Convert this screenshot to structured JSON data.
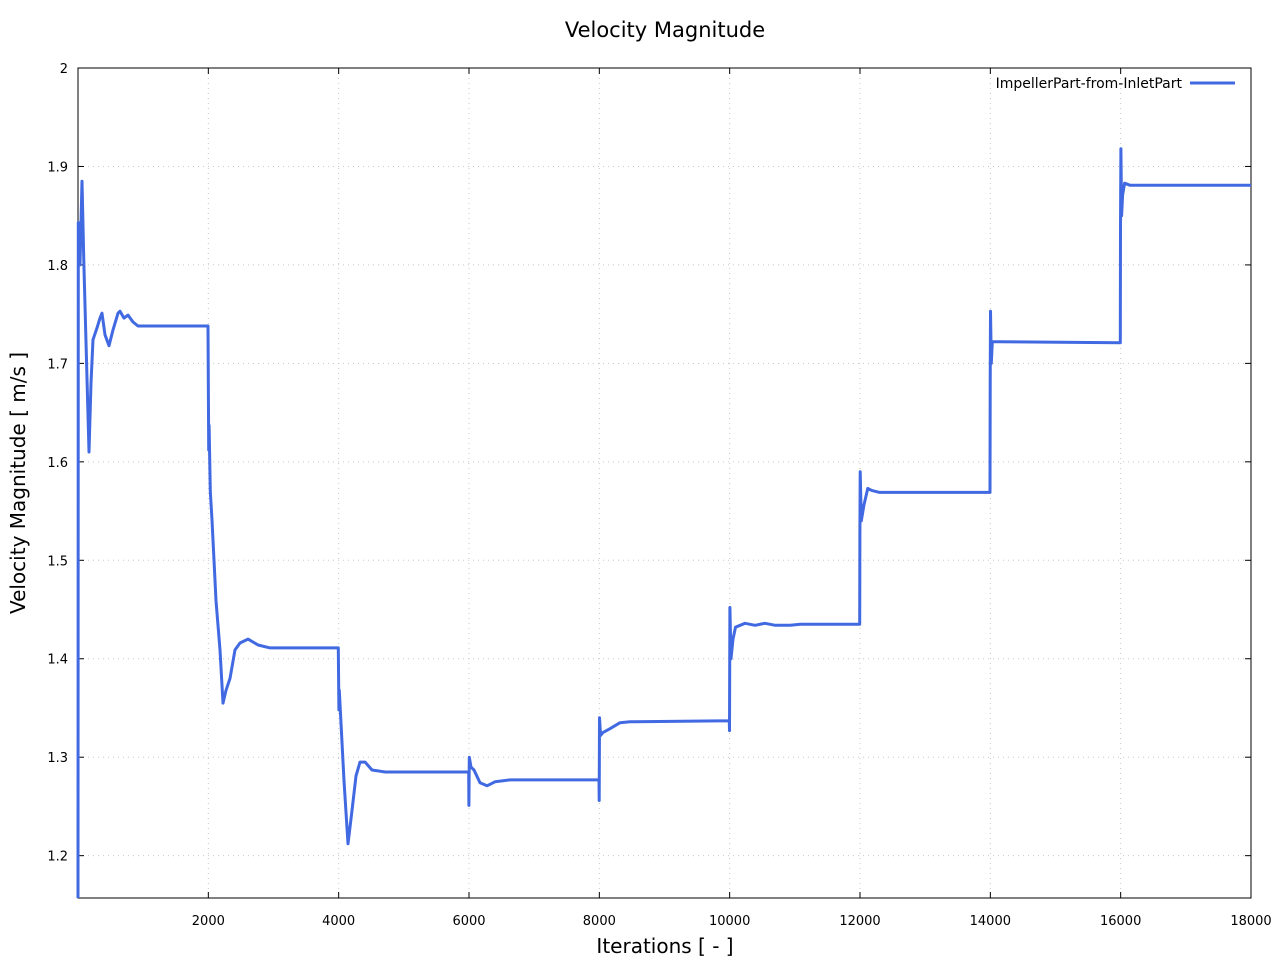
{
  "chart_data": {
    "type": "line",
    "title": "Velocity Magnitude",
    "xlabel": "Iterations [ - ]",
    "ylabel": "Velocity Magnitude [ m/s ]",
    "xlim": [
      0,
      18000
    ],
    "ylim": [
      1.157,
      2.0
    ],
    "grid": true,
    "legend_position": "top-right",
    "color": "#4169e1",
    "x_ticks": [
      "2000",
      "4000",
      "6000",
      "8000",
      "10000",
      "12000",
      "14000",
      "16000",
      "18000"
    ],
    "x_tick_values": [
      2000,
      4000,
      6000,
      8000,
      10000,
      12000,
      14000,
      16000,
      18000
    ],
    "y_ticks": [
      "1.2",
      "1.3",
      "1.4",
      "1.5",
      "1.6",
      "1.7",
      "1.8",
      "1.9",
      "2"
    ],
    "y_tick_values": [
      1.2,
      1.3,
      1.4,
      1.5,
      1.6,
      1.7,
      1.8,
      1.9,
      2.0
    ],
    "series": [
      {
        "name": "ImpellerPart-from-InletPart",
        "points": [
          [
            0,
            1.157
          ],
          [
            5,
            1.843
          ],
          [
            30,
            1.8
          ],
          [
            61,
            1.885
          ],
          [
            90,
            1.8
          ],
          [
            169,
            1.61
          ],
          [
            200,
            1.68
          ],
          [
            230,
            1.724
          ],
          [
            292,
            1.736
          ],
          [
            338,
            1.746
          ],
          [
            368,
            1.751
          ],
          [
            414,
            1.729
          ],
          [
            476,
            1.718
          ],
          [
            537,
            1.734
          ],
          [
            614,
            1.751
          ],
          [
            645,
            1.753
          ],
          [
            706,
            1.746
          ],
          [
            767,
            1.749
          ],
          [
            844,
            1.742
          ],
          [
            921,
            1.738
          ],
          [
            1995,
            1.738
          ],
          [
            2005,
            1.612
          ],
          [
            2012,
            1.637
          ],
          [
            2030,
            1.57
          ],
          [
            2056,
            1.541
          ],
          [
            2117,
            1.459
          ],
          [
            2179,
            1.409
          ],
          [
            2225,
            1.355
          ],
          [
            2271,
            1.368
          ],
          [
            2333,
            1.38
          ],
          [
            2409,
            1.409
          ],
          [
            2486,
            1.416
          ],
          [
            2609,
            1.42
          ],
          [
            2763,
            1.414
          ],
          [
            2947,
            1.411
          ],
          [
            3995,
            1.411
          ],
          [
            4003,
            1.348
          ],
          [
            4010,
            1.368
          ],
          [
            4082,
            1.276
          ],
          [
            4143,
            1.212
          ],
          [
            4205,
            1.246
          ],
          [
            4266,
            1.281
          ],
          [
            4328,
            1.295
          ],
          [
            4405,
            1.295
          ],
          [
            4512,
            1.287
          ],
          [
            4712,
            1.285
          ],
          [
            5995,
            1.285
          ],
          [
            5998,
            1.251
          ],
          [
            6005,
            1.3
          ],
          [
            6030,
            1.29
          ],
          [
            6077,
            1.287
          ],
          [
            6169,
            1.274
          ],
          [
            6276,
            1.271
          ],
          [
            6399,
            1.275
          ],
          [
            6630,
            1.277
          ],
          [
            7995,
            1.277
          ],
          [
            7998,
            1.256
          ],
          [
            8003,
            1.34
          ],
          [
            8020,
            1.322
          ],
          [
            8055,
            1.325
          ],
          [
            8163,
            1.329
          ],
          [
            8317,
            1.335
          ],
          [
            8470,
            1.336
          ],
          [
            9995,
            1.337
          ],
          [
            9998,
            1.327
          ],
          [
            10003,
            1.452
          ],
          [
            10020,
            1.4
          ],
          [
            10051,
            1.42
          ],
          [
            10090,
            1.432
          ],
          [
            10235,
            1.436
          ],
          [
            10390,
            1.434
          ],
          [
            10540,
            1.436
          ],
          [
            10700,
            1.434
          ],
          [
            10930,
            1.434
          ],
          [
            11085,
            1.435
          ],
          [
            11995,
            1.435
          ],
          [
            11998,
            1.528
          ],
          [
            12003,
            1.59
          ],
          [
            12020,
            1.54
          ],
          [
            12060,
            1.556
          ],
          [
            12120,
            1.573
          ],
          [
            12180,
            1.571
          ],
          [
            12300,
            1.569
          ],
          [
            13995,
            1.569
          ],
          [
            13998,
            1.68
          ],
          [
            14003,
            1.753
          ],
          [
            14015,
            1.7
          ],
          [
            14030,
            1.722
          ],
          [
            14140,
            1.722
          ],
          [
            15995,
            1.721
          ],
          [
            15998,
            1.839
          ],
          [
            16003,
            1.918
          ],
          [
            16015,
            1.85
          ],
          [
            16030,
            1.871
          ],
          [
            16060,
            1.883
          ],
          [
            16140,
            1.881
          ],
          [
            18000,
            1.881
          ]
        ]
      }
    ]
  }
}
